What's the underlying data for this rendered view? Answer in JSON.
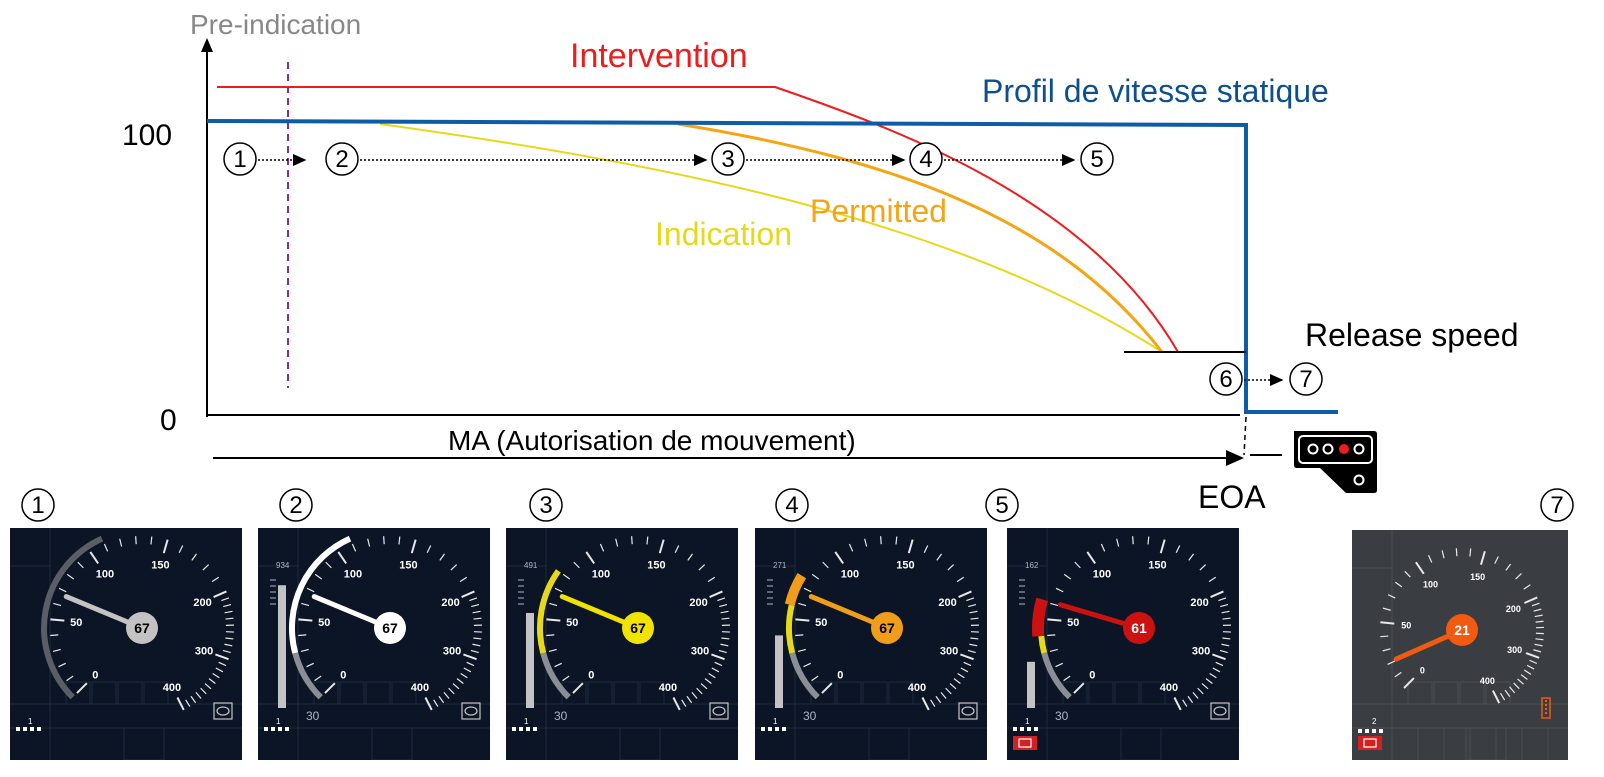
{
  "labels": {
    "pre_indication": "Pre-indication",
    "intervention": "Intervention",
    "static_profile": "Profil de vitesse statique",
    "permitted": "Permitted",
    "indication": "Indication",
    "release_speed": "Release speed",
    "ma": "MA (Autorisation de mouvement)",
    "eoa": "EOA",
    "y_100": "100",
    "y_0": "0"
  },
  "colors": {
    "static_profile": "#0e5ca6",
    "intervention": "#ee1c1c",
    "permitted": "#f5a513",
    "indication": "#e6d81a",
    "pre_indication": "#888888",
    "dmi_background": "#0b1526",
    "dmi_background_7": "#3a3d42"
  },
  "steps": [
    "1",
    "2",
    "3",
    "4",
    "5",
    "6",
    "7"
  ],
  "panel_steps": [
    "1",
    "2",
    "3",
    "4",
    "5",
    "7"
  ],
  "dmi_panels": [
    {
      "step": "1",
      "speed": "67",
      "needle_color": "#c3c3c3",
      "hub_color": "#c3c3c3",
      "speed_text_color": "#000000",
      "target_distance": "",
      "target_speed": "",
      "arc_mode": "grey",
      "bar_fill": 0
    },
    {
      "step": "2",
      "speed": "67",
      "needle_color": "#ffffff",
      "hub_color": "#ffffff",
      "speed_text_color": "#000000",
      "target_distance": "934",
      "target_speed": "30",
      "arc_mode": "white",
      "bar_fill": 0.93
    },
    {
      "step": "3",
      "speed": "67",
      "needle_color": "#f0e300",
      "hub_color": "#f0e300",
      "speed_text_color": "#000000",
      "target_distance": "491",
      "target_speed": "30",
      "arc_mode": "yellow",
      "bar_fill": 0.72
    },
    {
      "step": "4",
      "speed": "67",
      "needle_color": "#f09e1a",
      "hub_color": "#f09e1a",
      "speed_text_color": "#000000",
      "target_distance": "271",
      "target_speed": "30",
      "arc_mode": "orange",
      "bar_fill": 0.55
    },
    {
      "step": "5",
      "speed": "61",
      "needle_color": "#cc1111",
      "hub_color": "#cc1111",
      "speed_text_color": "#ffffff",
      "target_distance": "162",
      "target_speed": "30",
      "arc_mode": "red",
      "bar_fill": 0.35
    },
    {
      "step": "7",
      "speed": "21",
      "needle_color": "#f15a10",
      "hub_color": "#f15a10",
      "speed_text_color": "#ffffff",
      "target_distance": "",
      "target_speed": "",
      "arc_mode": "none",
      "bar_fill": 0
    }
  ],
  "dial_labels": [
    "0",
    "50",
    "100",
    "150",
    "200",
    "300",
    "400"
  ],
  "level_indicator": "1",
  "level_indicator_7": "2"
}
